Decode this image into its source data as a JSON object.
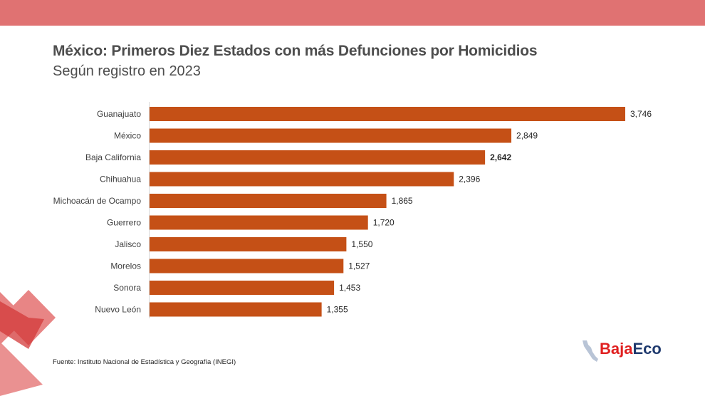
{
  "header": {
    "title": "México: Primeros Diez Estados con más Defunciones por Homicidios",
    "subtitle": "Según registro en 2023"
  },
  "colors": {
    "band": "#e07272",
    "bar": "#c55016",
    "text": "#4d4d4d",
    "decor_light": "#e88585",
    "decor_dark": "#d33a3a",
    "logo_red": "#e02020",
    "logo_blue": "#1f3a6e"
  },
  "chart_data": {
    "type": "bar",
    "orientation": "horizontal",
    "categories": [
      "Guanajuato",
      "México",
      "Baja California",
      "Chihuahua",
      "Michoacán de Ocampo",
      "Guerrero",
      "Jalisco",
      "Morelos",
      "Sonora",
      "Nuevo León"
    ],
    "values": [
      3746,
      2849,
      2642,
      2396,
      1865,
      1720,
      1550,
      1527,
      1453,
      1355
    ],
    "value_labels": [
      "3,746",
      "2,849",
      "2,642",
      "2,396",
      "1,865",
      "1,720",
      "1,550",
      "1,527",
      "1,453",
      "1,355"
    ],
    "highlighted_category": "Baja California",
    "xlim": [
      0,
      3746
    ],
    "grid": false,
    "legend": "none"
  },
  "footer": {
    "source": "Fuente: Instituto Nacional de Estadística y Geografía (INEGI)"
  },
  "logo": {
    "part1": "Baja",
    "part2": "Eco"
  }
}
